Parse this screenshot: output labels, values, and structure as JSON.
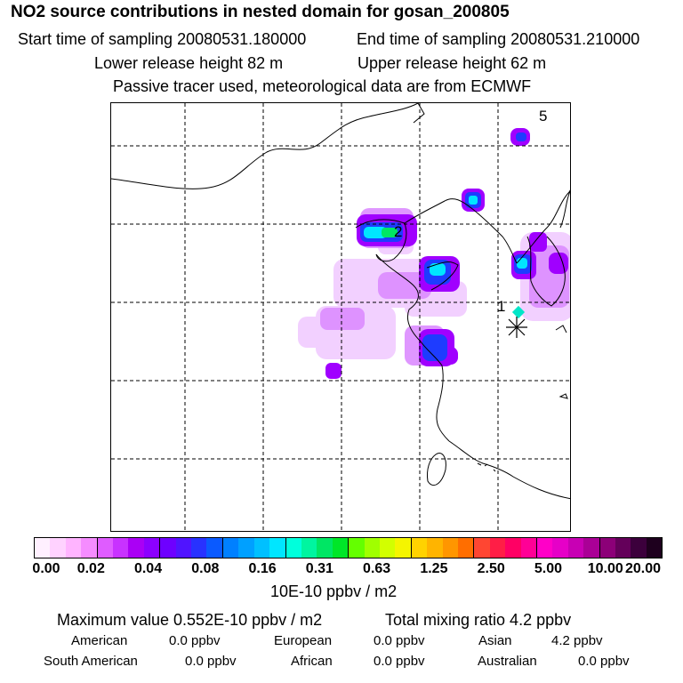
{
  "header": {
    "title": "NO2 source contributions in nested domain for gosan_200805",
    "start_label": "Start time of sampling 20080531.180000",
    "end_label": "End time of sampling 20080531.210000",
    "lower_label": "Lower release height   82 m",
    "upper_label": "Upper release height   62 m",
    "tracer_note": "Passive tracer used, meteorological data are from ECMWF"
  },
  "map": {
    "markers": [
      {
        "label": "1",
        "kind": "receptor-number"
      },
      {
        "label": "2",
        "kind": "source-number"
      },
      {
        "label": "5",
        "kind": "source-number"
      }
    ]
  },
  "colorbar": {
    "colors": [
      "#fff0ff",
      "#ffd2ff",
      "#ffb4ff",
      "#f58cff",
      "#df5cff",
      "#c832ff",
      "#aa00f5",
      "#8c00ff",
      "#6e00ff",
      "#5014ff",
      "#2832ff",
      "#0a5aff",
      "#0080ff",
      "#00a0ff",
      "#00c0ff",
      "#00e6ff",
      "#00ffdc",
      "#00f5a0",
      "#00e664",
      "#00e628",
      "#64ff00",
      "#a0ff00",
      "#d2ff00",
      "#f5f500",
      "#ffd200",
      "#ffb400",
      "#ff9600",
      "#ff6e00",
      "#ff4632",
      "#ff1e46",
      "#ff0064",
      "#ff0096",
      "#ff00c8",
      "#e600c8",
      "#c800b4",
      "#aa0096",
      "#8c0078",
      "#64005a",
      "#3c003c",
      "#1e001e"
    ],
    "tick_labels": [
      "0.00",
      "0.02",
      "0.04",
      "0.08",
      "0.16",
      "0.31",
      "0.63",
      "1.25",
      "2.50",
      "5.00",
      "10.00",
      "20.00"
    ],
    "unit": "10E-10 ppbv / m2"
  },
  "summary": {
    "max_value": "Maximum value  0.552E-10 ppbv / m2",
    "total_mixing": "Total mixing ratio       4.2 ppbv",
    "rows": [
      [
        {
          "name": "American",
          "value": "0.0 ppbv"
        },
        {
          "name": "European",
          "value": "0.0 ppbv"
        },
        {
          "name": "Asian",
          "value": "4.2 ppbv"
        }
      ],
      [
        {
          "name": "South American",
          "value": "0.0 ppbv"
        },
        {
          "name": "African",
          "value": "0.0 ppbv"
        },
        {
          "name": "Australian",
          "value": "0.0 ppbv"
        }
      ]
    ]
  }
}
